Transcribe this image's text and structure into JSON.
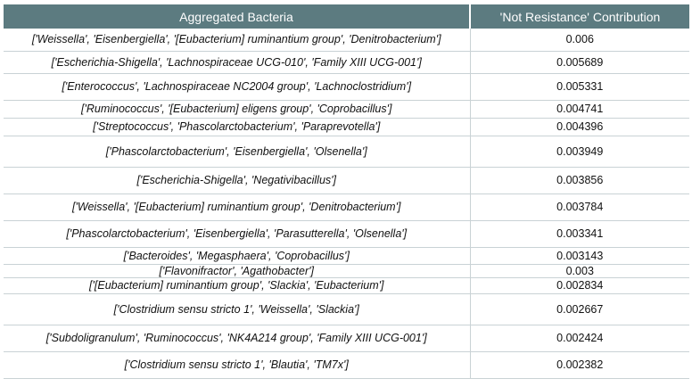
{
  "table": {
    "headers": [
      "Aggregated Bacteria",
      "'Not Resistance' Contribution"
    ],
    "rows": [
      {
        "bacteria": "['Weissella', 'Eisenbergiella', '[Eubacterium] ruminantium group', 'Denitrobacterium']",
        "value": "0.006"
      },
      {
        "bacteria": "['Escherichia-Shigella', 'Lachnospiraceae UCG-010', 'Family XIII UCG-001']",
        "value": "0.005689"
      },
      {
        "bacteria": "['Enterococcus', 'Lachnospiraceae NC2004 group', 'Lachnoclostridium']",
        "value": "0.005331"
      },
      {
        "bacteria": "['Ruminococcus', '[Eubacterium] eligens group', 'Coprobacillus']",
        "value": "0.004741"
      },
      {
        "bacteria": "['Streptococcus', 'Phascolarctobacterium', 'Paraprevotella']",
        "value": "0.004396"
      },
      {
        "bacteria": "['Phascolarctobacterium', 'Eisenbergiella', 'Olsenella']",
        "value": "0.003949"
      },
      {
        "bacteria": "['Escherichia-Shigella', 'Negativibacillus']",
        "value": "0.003856"
      },
      {
        "bacteria": "['Weissella', '[Eubacterium] ruminantium group', 'Denitrobacterium']",
        "value": "0.003784"
      },
      {
        "bacteria": "['Phascolarctobacterium', 'Eisenbergiella', 'Parasutterella', 'Olsenella']",
        "value": "0.003341"
      },
      {
        "bacteria": "['Bacteroides', 'Megasphaera', 'Coprobacillus']",
        "value": "0.003143"
      },
      {
        "bacteria": "['Flavonifractor', 'Agathobacter']",
        "value": "0.003"
      },
      {
        "bacteria": "['[Eubacterium] ruminantium group', 'Slackia', 'Eubacterium']",
        "value": "0.002834"
      },
      {
        "bacteria": "['Clostridium sensu stricto 1', 'Weissella', 'Slackia']",
        "value": "0.002667"
      },
      {
        "bacteria": "['Subdoligranulum', 'Ruminococcus', 'NK4A214 group', 'Family XIII UCG-001']",
        "value": "0.002424"
      },
      {
        "bacteria": "['Clostridium sensu stricto 1', 'Blautia', 'TM7x']",
        "value": "0.002382"
      }
    ]
  }
}
